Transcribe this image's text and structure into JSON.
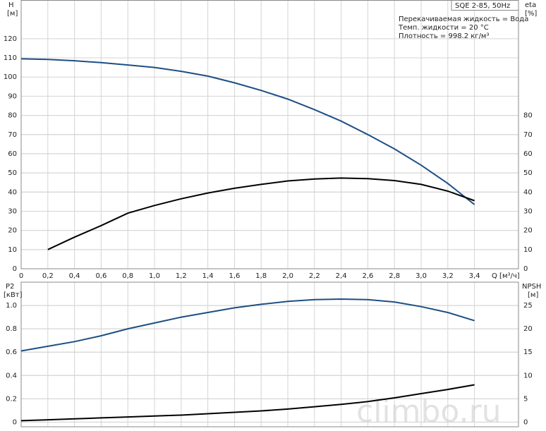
{
  "chart_data": [
    {
      "type": "line",
      "title": "SQE 2-85, 50Hz",
      "annotations": [
        "Перекачиваемая жидкость = Вода",
        "Темп. жидкости = 20 °C",
        "Плотность = 998.2 кг/м³"
      ],
      "x_label": "Q [м³/ч]",
      "y_unit": "[м]",
      "y2_unit": "[%]",
      "x": [
        0,
        0.2,
        0.4,
        0.6,
        0.8,
        1.0,
        1.2,
        1.4,
        1.6,
        1.8,
        2.0,
        2.2,
        2.4,
        2.6,
        2.8,
        3.0,
        3.2,
        3.4
      ],
      "series": [
        {
          "name": "H",
          "color": "#1d4f83",
          "values": [
            109.5,
            109.2,
            108.5,
            107.5,
            106.3,
            105,
            103,
            100.5,
            97,
            93,
            88.5,
            83,
            77,
            70,
            62.5,
            54,
            44.5,
            33.5
          ]
        },
        {
          "name": "eta",
          "color": "#000000",
          "axis": "y2",
          "values": [
            null,
            10,
            16.5,
            22.5,
            29,
            33,
            36.5,
            39.5,
            42,
            44,
            45.8,
            46.8,
            47.3,
            47,
            46,
            44,
            40.5,
            35.5
          ]
        }
      ],
      "xlim": [
        0,
        3.73
      ],
      "xticks": [
        0,
        {
          "value": 0.2,
          "label": "0,2"
        },
        {
          "value": 0.4,
          "label": "0,4"
        },
        {
          "value": 0.6,
          "label": "0,6"
        },
        {
          "value": 0.8,
          "label": "0,8"
        },
        {
          "value": 1.0,
          "label": "1,0"
        },
        {
          "value": 1.2,
          "label": "1,2"
        },
        {
          "value": 1.4,
          "label": "1,4"
        },
        {
          "value": 1.6,
          "label": "1,6"
        },
        {
          "value": 1.8,
          "label": "1,8"
        },
        {
          "value": 2.0,
          "label": "2,0"
        },
        {
          "value": 2.2,
          "label": "2,2"
        },
        {
          "value": 2.4,
          "label": "2,4"
        },
        {
          "value": 2.6,
          "label": "2,6"
        },
        {
          "value": 2.8,
          "label": "2,8"
        },
        {
          "value": 3.0,
          "label": "3,0"
        },
        {
          "value": 3.2,
          "label": "3,2"
        },
        {
          "value": 3.4,
          "label": "3,4"
        }
      ],
      "ylim": [
        0,
        140
      ],
      "yticks": [
        0,
        10,
        20,
        30,
        40,
        50,
        60,
        70,
        80,
        90,
        100,
        110,
        120
      ],
      "y2lim": [
        0,
        140
      ],
      "y2ticks": [
        0,
        10,
        20,
        30,
        40,
        50,
        60,
        70,
        80
      ],
      "grid": true
    },
    {
      "type": "line",
      "y_unit": "[кВт]",
      "y2_unit": "[м]",
      "x": [
        0,
        0.2,
        0.4,
        0.6,
        0.8,
        1.0,
        1.2,
        1.4,
        1.6,
        1.8,
        2.0,
        2.2,
        2.4,
        2.6,
        2.8,
        3.0,
        3.2,
        3.4
      ],
      "series": [
        {
          "name": "P2",
          "color": "#1d4f83",
          "values": [
            0.61,
            0.65,
            0.69,
            0.74,
            0.8,
            0.85,
            0.9,
            0.94,
            0.98,
            1.01,
            1.035,
            1.05,
            1.055,
            1.05,
            1.03,
            0.99,
            0.94,
            0.87
          ]
        },
        {
          "name": "NPSH",
          "color": "#000000",
          "axis": "y2",
          "values": [
            0.3,
            0.5,
            0.7,
            0.9,
            1.1,
            1.3,
            1.5,
            1.8,
            2.1,
            2.4,
            2.8,
            3.3,
            3.8,
            4.4,
            5.2,
            6.1,
            7.0,
            8.0
          ]
        }
      ],
      "xlim": [
        0,
        3.73
      ],
      "ylim": [
        -0.04,
        1.2
      ],
      "yticks": [
        0,
        0.2,
        0.4,
        0.6,
        0.8,
        {
          "value": 1.0,
          "label": "1.0"
        }
      ],
      "y2lim": [
        -1,
        30
      ],
      "y2ticks": [
        0,
        5,
        10,
        15,
        20,
        25
      ],
      "grid": true
    }
  ],
  "watermark": "climbo.ru"
}
